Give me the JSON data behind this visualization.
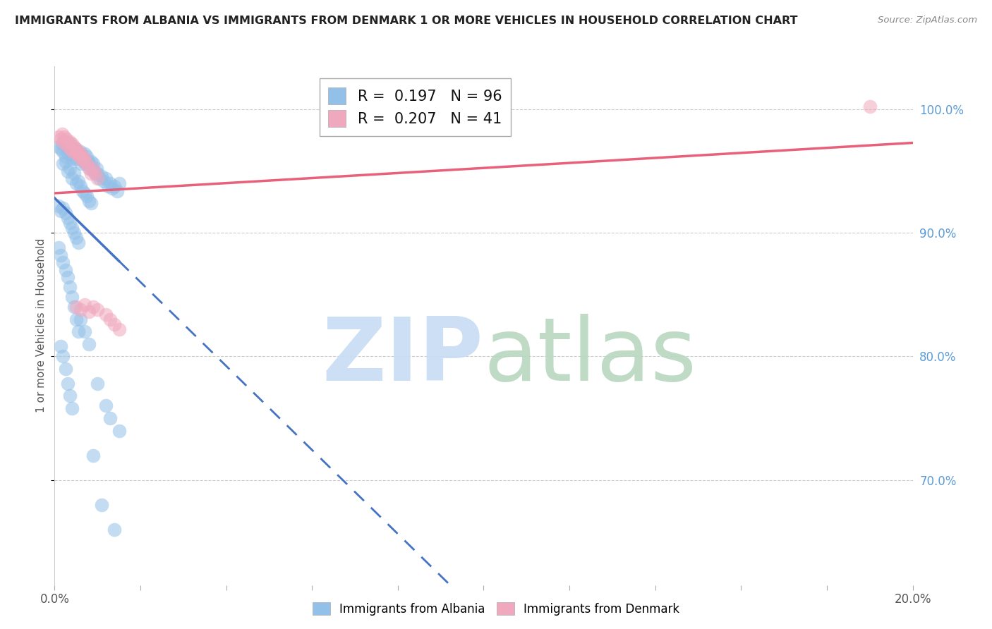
{
  "title": "IMMIGRANTS FROM ALBANIA VS IMMIGRANTS FROM DENMARK 1 OR MORE VEHICLES IN HOUSEHOLD CORRELATION CHART",
  "source": "Source: ZipAtlas.com",
  "ylabel": "1 or more Vehicles in Household",
  "xlim": [
    0.0,
    0.2
  ],
  "ylim": [
    0.615,
    1.035
  ],
  "xticks": [
    0.0,
    0.02,
    0.04,
    0.06,
    0.08,
    0.1,
    0.12,
    0.14,
    0.16,
    0.18,
    0.2
  ],
  "xticklabels_show": [
    "0.0%",
    "20.0%"
  ],
  "yticks": [
    0.7,
    0.8,
    0.9,
    1.0
  ],
  "yticklabels": [
    "70.0%",
    "80.0%",
    "90.0%",
    "100.0%"
  ],
  "albania_color": "#92C0E8",
  "denmark_color": "#F0A8BE",
  "albania_line_color": "#4472C4",
  "denmark_line_color": "#E8607A",
  "albania_R": 0.197,
  "albania_N": 96,
  "denmark_R": 0.207,
  "denmark_N": 41,
  "watermark_zip_color": "#C8DCF4",
  "watermark_atlas_color": "#B8D8C0",
  "background_color": "#ffffff",
  "grid_color": "#CCCCCC",
  "albania_x": [
    0.001,
    0.0015,
    0.0018,
    0.002,
    0.0022,
    0.0025,
    0.0028,
    0.003,
    0.0032,
    0.0035,
    0.0038,
    0.004,
    0.0042,
    0.0045,
    0.0048,
    0.005,
    0.0052,
    0.0055,
    0.0058,
    0.006,
    0.0062,
    0.0065,
    0.0068,
    0.007,
    0.0072,
    0.0075,
    0.0078,
    0.008,
    0.0082,
    0.0085,
    0.0088,
    0.009,
    0.0092,
    0.0095,
    0.0098,
    0.01,
    0.0105,
    0.011,
    0.0115,
    0.012,
    0.0125,
    0.013,
    0.0135,
    0.014,
    0.0145,
    0.015,
    0.002,
    0.0025,
    0.003,
    0.0035,
    0.004,
    0.0045,
    0.005,
    0.0055,
    0.006,
    0.0065,
    0.007,
    0.0075,
    0.008,
    0.0085,
    0.001,
    0.0015,
    0.002,
    0.0025,
    0.003,
    0.0035,
    0.004,
    0.0045,
    0.005,
    0.0055,
    0.001,
    0.0015,
    0.002,
    0.0025,
    0.003,
    0.0035,
    0.004,
    0.0045,
    0.005,
    0.0055,
    0.0015,
    0.002,
    0.0025,
    0.003,
    0.0035,
    0.004,
    0.006,
    0.007,
    0.008,
    0.01,
    0.012,
    0.013,
    0.015,
    0.009,
    0.011,
    0.014
  ],
  "albania_y": [
    0.97,
    0.968,
    0.972,
    0.966,
    0.974,
    0.962,
    0.97,
    0.968,
    0.964,
    0.972,
    0.966,
    0.96,
    0.968,
    0.962,
    0.968,
    0.96,
    0.966,
    0.964,
    0.96,
    0.966,
    0.956,
    0.962,
    0.958,
    0.964,
    0.956,
    0.962,
    0.958,
    0.956,
    0.952,
    0.958,
    0.952,
    0.956,
    0.95,
    0.948,
    0.952,
    0.948,
    0.944,
    0.946,
    0.942,
    0.944,
    0.938,
    0.94,
    0.936,
    0.938,
    0.934,
    0.94,
    0.956,
    0.958,
    0.95,
    0.952,
    0.944,
    0.948,
    0.94,
    0.942,
    0.938,
    0.934,
    0.932,
    0.93,
    0.926,
    0.924,
    0.922,
    0.918,
    0.92,
    0.916,
    0.912,
    0.908,
    0.904,
    0.9,
    0.896,
    0.892,
    0.888,
    0.882,
    0.876,
    0.87,
    0.864,
    0.856,
    0.848,
    0.84,
    0.83,
    0.82,
    0.808,
    0.8,
    0.79,
    0.778,
    0.768,
    0.758,
    0.83,
    0.82,
    0.81,
    0.778,
    0.76,
    0.75,
    0.74,
    0.72,
    0.68,
    0.66
  ],
  "denmark_x": [
    0.001,
    0.0015,
    0.0018,
    0.002,
    0.0022,
    0.0025,
    0.0028,
    0.003,
    0.0032,
    0.0035,
    0.0038,
    0.004,
    0.0042,
    0.0045,
    0.0048,
    0.005,
    0.0052,
    0.0055,
    0.0058,
    0.006,
    0.0062,
    0.0065,
    0.0068,
    0.007,
    0.0075,
    0.008,
    0.0085,
    0.009,
    0.0095,
    0.01,
    0.005,
    0.006,
    0.007,
    0.008,
    0.009,
    0.01,
    0.012,
    0.013,
    0.014,
    0.015,
    0.19
  ],
  "denmark_y": [
    0.978,
    0.976,
    0.98,
    0.974,
    0.978,
    0.972,
    0.976,
    0.974,
    0.97,
    0.974,
    0.968,
    0.972,
    0.966,
    0.97,
    0.966,
    0.968,
    0.964,
    0.966,
    0.962,
    0.964,
    0.96,
    0.962,
    0.958,
    0.96,
    0.956,
    0.952,
    0.948,
    0.952,
    0.948,
    0.944,
    0.84,
    0.838,
    0.842,
    0.836,
    0.84,
    0.838,
    0.834,
    0.83,
    0.826,
    0.822,
    1.002
  ]
}
